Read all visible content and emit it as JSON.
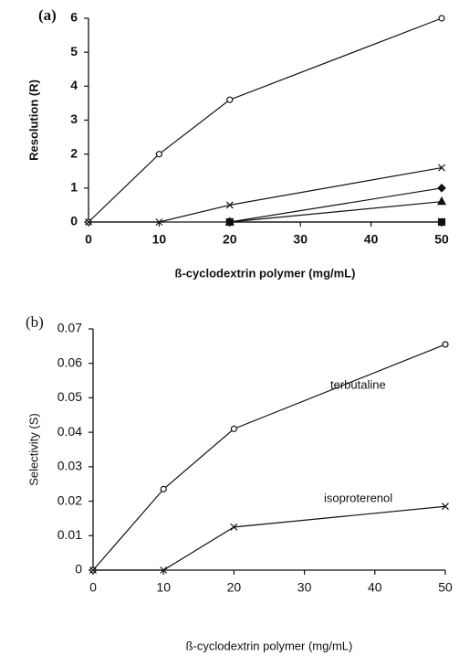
{
  "chart_data": [
    {
      "type": "line",
      "title": "(a)",
      "x_label": "ß-cyclodextrin polymer (mg/mL)",
      "y_label": "Resolution (R)",
      "x": [
        0,
        10,
        20,
        50
      ],
      "xlim": [
        0,
        50
      ],
      "xticks": [
        0,
        10,
        20,
        30,
        40,
        50
      ],
      "ylim": [
        0,
        6
      ],
      "yticks": [
        0,
        1,
        2,
        3,
        4,
        5,
        6
      ],
      "series": [
        {
          "marker": "circle",
          "color": "#111111",
          "values": [
            0,
            2,
            3.6,
            6
          ]
        },
        {
          "marker": "cross",
          "color": "#111111",
          "values": [
            0,
            0,
            0.5,
            1.6
          ]
        },
        {
          "marker": "diamond",
          "color": "#111111",
          "values": [
            null,
            null,
            0,
            1.0
          ]
        },
        {
          "marker": "triangle",
          "color": "#111111",
          "values": [
            null,
            null,
            0,
            0.6
          ]
        },
        {
          "marker": "square",
          "color": "#111111",
          "values": [
            null,
            null,
            0,
            0
          ]
        }
      ]
    },
    {
      "type": "line",
      "title": "(b)",
      "x_label": "ß-cyclodextrin polymer (mg/mL)",
      "y_label": "Selectivity (S)",
      "x": [
        0,
        10,
        20,
        50
      ],
      "xlim": [
        0,
        50
      ],
      "xticks": [
        0,
        10,
        20,
        30,
        40,
        50
      ],
      "ylim": [
        0,
        0.07
      ],
      "yticks": [
        0,
        0.01,
        0.02,
        0.03,
        0.04,
        0.05,
        0.06,
        0.07
      ],
      "series": [
        {
          "name": "terbutaline",
          "marker": "circle",
          "color": "#111111",
          "values": [
            0,
            0.0235,
            0.041,
            0.0655
          ]
        },
        {
          "name": "isoproterenol",
          "marker": "cross",
          "color": "#111111",
          "values": [
            0,
            0,
            0.0125,
            0.0185
          ]
        }
      ]
    }
  ]
}
